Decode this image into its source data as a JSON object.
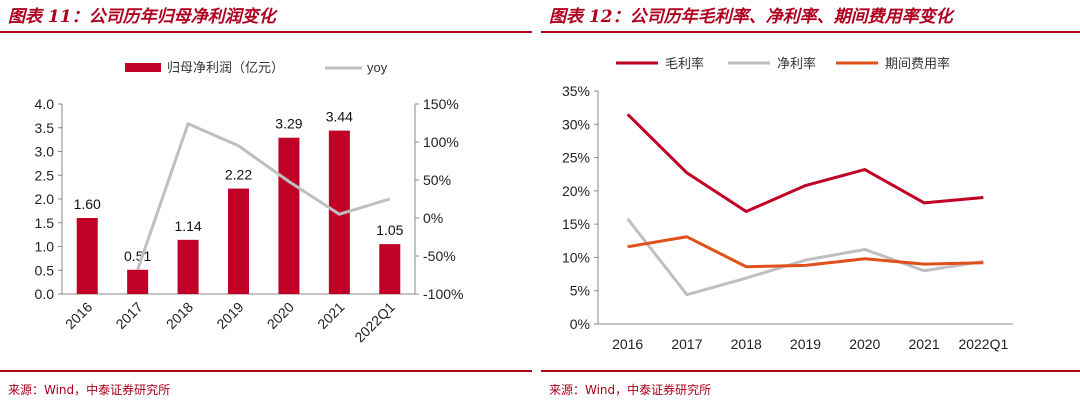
{
  "left": {
    "title": "图表 11：公司历年归母净利润变化",
    "source": "来源：Wind，中泰证券研究所",
    "legend": {
      "bar": "归母净利润（亿元）",
      "line": "yoy"
    }
  },
  "right": {
    "title": "图表 12：公司历年毛利率、净利率、期间费用率变化",
    "source": "来源：Wind，中泰证券研究所",
    "legend": [
      "毛利率",
      "净利率",
      "期间费用率"
    ]
  },
  "colors": {
    "accent": "#c00026",
    "gray": "#bfbfbf",
    "orange": "#e0501b",
    "source_text": "#a8001a"
  },
  "chart_data": [
    {
      "type": "bar",
      "categories": [
        "2016",
        "2017",
        "2018",
        "2019",
        "2020",
        "2021",
        "2022Q1"
      ],
      "series": [
        {
          "name": "归母净利润（亿元）",
          "type": "bar",
          "axis": "left",
          "values": [
            1.6,
            0.51,
            1.14,
            2.22,
            3.29,
            3.44,
            1.05
          ],
          "data_labels": [
            "1.60",
            "0.51",
            "1.14",
            "2.22",
            "3.29",
            "3.44",
            "1.05"
          ]
        },
        {
          "name": "yoy",
          "type": "line",
          "axis": "right",
          "values": [
            null,
            -68,
            124,
            95,
            48,
            5,
            25
          ]
        }
      ],
      "ylim": [
        0,
        4.0
      ],
      "yticks": [
        "0.0",
        "0.5",
        "1.0",
        "1.5",
        "2.0",
        "2.5",
        "3.0",
        "3.5",
        "4.0"
      ],
      "y2lim": [
        -100,
        150
      ],
      "y2ticks": [
        "-100%",
        "-50%",
        "0%",
        "50%",
        "100%",
        "150%"
      ],
      "grid": false,
      "legend_position": "top"
    },
    {
      "type": "line",
      "categories": [
        "2016",
        "2017",
        "2018",
        "2019",
        "2020",
        "2021",
        "2022Q1"
      ],
      "series": [
        {
          "name": "毛利率",
          "values": [
            31.5,
            22.7,
            16.9,
            20.8,
            23.2,
            18.2,
            19.0
          ]
        },
        {
          "name": "净利率",
          "values": [
            15.8,
            4.4,
            6.9,
            9.6,
            11.2,
            8.0,
            9.4
          ]
        },
        {
          "name": "期间费用率",
          "values": [
            11.6,
            13.1,
            8.6,
            8.8,
            9.8,
            9.0,
            9.2
          ]
        }
      ],
      "ylim": [
        0,
        35
      ],
      "yticks": [
        "0%",
        "5%",
        "10%",
        "15%",
        "20%",
        "25%",
        "30%",
        "35%"
      ],
      "grid": false,
      "legend_position": "top"
    }
  ]
}
